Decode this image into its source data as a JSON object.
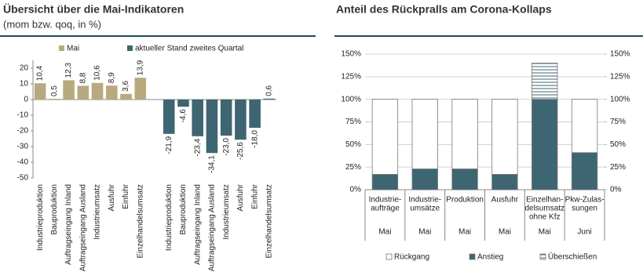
{
  "chart_data": [
    {
      "type": "bar",
      "title": "Übersicht über die Mai-Indikatoren",
      "subtitle": "(mom bzw. qoq, in %)",
      "categories": [
        "Industrieproduktion",
        "Bauproduktion",
        "Auftragseingang Inland",
        "Auftragseingang Ausland",
        "Industrieumsatz",
        "Ausfuhr",
        "Einfuhr",
        "Einzelhandelsumsatz",
        null,
        "Industrieproduktion",
        "Bauproduktion",
        "Auftragseingang Inland",
        "Auftragseingang Ausland",
        "Industrieumsatz",
        "Ausfuhr",
        "Einfuhr",
        "Einzelhandelsumsatz"
      ],
      "series": [
        {
          "name": "Mai",
          "color": "#b8a97e",
          "values": [
            10.4,
            0.5,
            12.3,
            8.8,
            10.6,
            8.9,
            3.6,
            13.9,
            null,
            null,
            null,
            null,
            null,
            null,
            null,
            null,
            null
          ],
          "value_labels": [
            "10,4",
            "0,5",
            "12,3",
            "8,8",
            "10,6",
            "8,9",
            "3,6",
            "13,9",
            null,
            null,
            null,
            null,
            null,
            null,
            null,
            null,
            null
          ]
        },
        {
          "name": "aktueller Stand zweites Quartal",
          "color": "#3e6672",
          "values": [
            null,
            null,
            null,
            null,
            null,
            null,
            null,
            null,
            null,
            -21.9,
            -4.6,
            -23.4,
            -34.1,
            -23.0,
            -25.6,
            -18.0,
            0.6
          ],
          "value_labels": [
            null,
            null,
            null,
            null,
            null,
            null,
            null,
            null,
            null,
            "-21,9",
            "-4,6",
            "-23,4",
            "-34,1",
            "-23,0",
            "-25,6",
            "-18,0",
            "0,6"
          ]
        }
      ],
      "ylim": [
        -50,
        25
      ],
      "yticks": [
        20,
        10,
        0,
        -10,
        -20,
        -30,
        -40,
        -50
      ],
      "grid": false
    },
    {
      "type": "stacked-bar",
      "title": "Anteil des Rückpralls am Corona-Kollaps",
      "categories": [
        [
          "Industrie-",
          "aufträge"
        ],
        [
          "Industrie-",
          "umsätze"
        ],
        [
          "Produktion"
        ],
        [
          "Ausfuhr"
        ],
        [
          "Einzelhan-",
          "delsumsatz",
          "ohne Kfz"
        ],
        [
          "Pkw-Zulas-",
          "sungen"
        ]
      ],
      "periods": [
        "Mai",
        "Mai",
        "Mai",
        "Mai",
        "Mai",
        "Juni"
      ],
      "series": [
        {
          "name": "Anstieg",
          "color": "#3e6672",
          "values": [
            17,
            23,
            23,
            17,
            100,
            41
          ]
        },
        {
          "name": "Rückgang",
          "color": "#ffffff",
          "values": [
            83,
            77,
            77,
            83,
            0,
            59
          ]
        },
        {
          "name": "Überschießen",
          "color": "#ffffff",
          "pattern": "horizontal-stripes",
          "values": [
            0,
            0,
            0,
            0,
            40,
            0
          ]
        }
      ],
      "ylim": [
        0,
        150
      ],
      "yticks": [
        {
          "value": 0,
          "label": "0%"
        },
        {
          "value": 25,
          "label": "25%"
        },
        {
          "value": 50,
          "label": "50%"
        },
        {
          "value": 75,
          "label": "75%"
        },
        {
          "value": 100,
          "label": "100%"
        },
        {
          "value": 125,
          "label": "125%"
        },
        {
          "value": 150,
          "label": "150%"
        }
      ],
      "y2lim": [
        0,
        150
      ],
      "y2ticks": [
        {
          "value": 0,
          "label": "0%"
        },
        {
          "value": 25,
          "label": "25%"
        },
        {
          "value": 50,
          "label": "50%"
        },
        {
          "value": 75,
          "label": "75%"
        },
        {
          "value": 100,
          "label": "100%"
        },
        {
          "value": 125,
          "label": "125%"
        },
        {
          "value": 150,
          "label": "150%"
        }
      ],
      "grid": true
    }
  ]
}
